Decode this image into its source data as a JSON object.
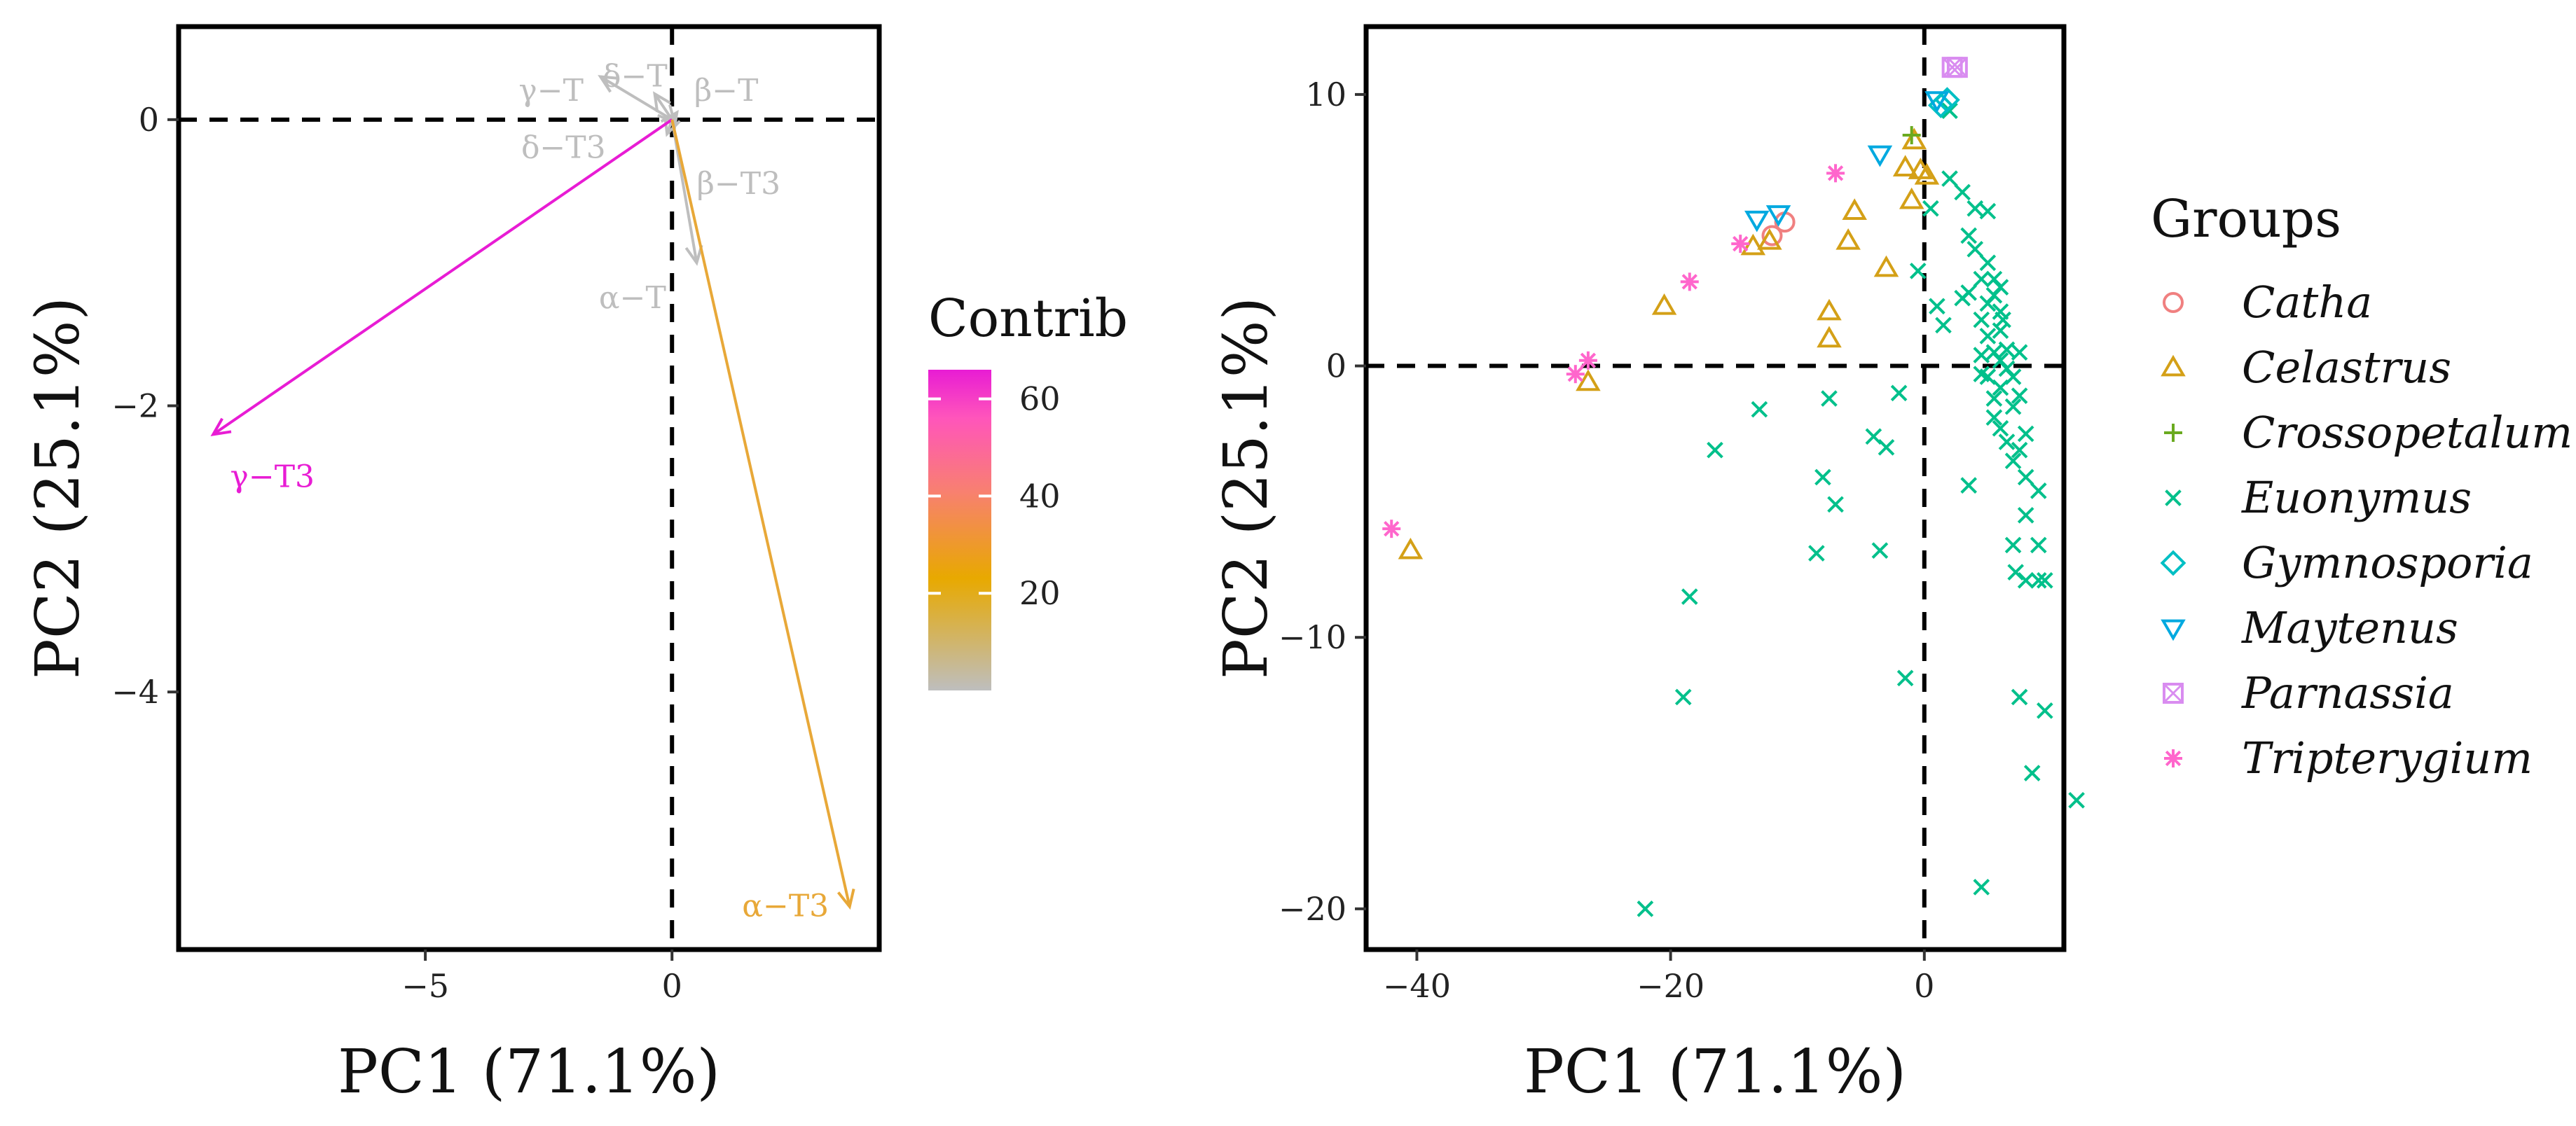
{
  "colors": {
    "catha": "#F08080",
    "celastrus": "#D4A017",
    "crossopetalum": "#6AAA1F",
    "euonymus": "#00C08B",
    "gymnosporia": "#00BFC4",
    "maytenus": "#00A9E0",
    "parnassia": "#D98CF0",
    "tripterygium": "#FF66CC",
    "gray": "#BEBEBE",
    "magenta": "#E81CD4",
    "gold": "#E8A838"
  },
  "chart_data": [
    {
      "type": "biplot-variables",
      "xlabel": "PC1 (71.1%)",
      "ylabel": "PC2 (25.1%)",
      "xlim": [
        -10,
        4.2
      ],
      "ylim": [
        -5.8,
        0.65
      ],
      "xticks": [
        {
          "v": -5,
          "label": "−5"
        },
        {
          "v": 0,
          "label": "0"
        }
      ],
      "yticks": [
        {
          "v": 0,
          "label": "0"
        },
        {
          "v": -2,
          "label": "−2"
        },
        {
          "v": -4,
          "label": "−4"
        }
      ],
      "vectors": [
        {
          "name": "γ−T",
          "x": -1.45,
          "y": 0.3,
          "contrib": 1,
          "lx": -2.45,
          "ly": 0.2
        },
        {
          "name": "δ−T",
          "x": -0.35,
          "y": 0.18,
          "contrib": 1,
          "lx": -0.75,
          "ly": 0.3
        },
        {
          "name": "β−T",
          "x": 0.1,
          "y": 0.05,
          "contrib": 1,
          "lx": 1.1,
          "ly": 0.2
        },
        {
          "name": "δ−T3",
          "x": -0.1,
          "y": -0.1,
          "contrib": 1,
          "lx": -2.2,
          "ly": -0.2
        },
        {
          "name": "β−T3",
          "x": 0.05,
          "y": -0.02,
          "contrib": 1,
          "lx": 1.35,
          "ly": -0.45
        },
        {
          "name": "α−T",
          "x": 0.5,
          "y": -1.0,
          "contrib": 2,
          "lx": -0.8,
          "ly": -1.25
        },
        {
          "name": "γ−T3",
          "x": -9.3,
          "y": -2.2,
          "contrib": 65,
          "lx": -8.1,
          "ly": -2.5
        },
        {
          "name": "α−T3",
          "x": 3.6,
          "y": -5.5,
          "contrib": 30,
          "lx": 2.3,
          "ly": -5.5
        }
      ],
      "colorbar": {
        "title": "Contrib",
        "range": [
          0,
          66
        ],
        "ticks": [
          20,
          40,
          60
        ]
      }
    },
    {
      "type": "scatter",
      "xlabel": "PC1 (71.1%)",
      "ylabel": "PC2 (25.1%)",
      "xlim": [
        -44,
        11
      ],
      "ylim": [
        -21.5,
        12.5
      ],
      "xticks": [
        {
          "v": -40,
          "label": "−40"
        },
        {
          "v": -20,
          "label": "−20"
        },
        {
          "v": 0,
          "label": "0"
        }
      ],
      "yticks": [
        {
          "v": 10,
          "label": "10"
        },
        {
          "v": 0,
          "label": "0"
        },
        {
          "v": -10,
          "label": "−10"
        },
        {
          "v": -20,
          "label": "−20"
        }
      ],
      "legend_title": "Groups",
      "series": [
        {
          "name": "Catha",
          "marker": "circle",
          "color_key": "catha",
          "points": [
            [
              -11.0,
              5.3
            ],
            [
              -12.0,
              4.8
            ]
          ]
        },
        {
          "name": "Celastrus",
          "marker": "triangle-up",
          "color_key": "celastrus",
          "points": [
            [
              -40.5,
              -6.8
            ],
            [
              -26.5,
              -0.6
            ],
            [
              -20.5,
              2.2
            ],
            [
              -13.5,
              4.4
            ],
            [
              -12.2,
              4.6
            ],
            [
              -7.5,
              2.0
            ],
            [
              -7.5,
              1.0
            ],
            [
              -6.0,
              4.6
            ],
            [
              -5.5,
              5.7
            ],
            [
              -3.0,
              3.6
            ],
            [
              -1.5,
              7.3
            ],
            [
              -1.0,
              6.1
            ],
            [
              -0.8,
              8.3
            ],
            [
              -0.3,
              7.2
            ],
            [
              0.2,
              7.0
            ]
          ]
        },
        {
          "name": "Crossopetalum",
          "marker": "plus",
          "color_key": "crossopetalum",
          "points": [
            [
              -1.0,
              8.5
            ]
          ]
        },
        {
          "name": "Euonymus",
          "marker": "x",
          "color_key": "euonymus",
          "points": [
            [
              -22,
              -20
            ],
            [
              -19,
              -12.2
            ],
            [
              -18.5,
              -8.5
            ],
            [
              -16.5,
              -3.1
            ],
            [
              -13,
              -1.6
            ],
            [
              -8,
              -4.1
            ],
            [
              -7.5,
              -1.2
            ],
            [
              -7,
              -5.1
            ],
            [
              -8.5,
              -6.9
            ],
            [
              -4,
              -2.6
            ],
            [
              -3.5,
              -6.8
            ],
            [
              -3,
              -3.0
            ],
            [
              -2,
              -1.0
            ],
            [
              -1.5,
              -11.5
            ],
            [
              -0.5,
              3.5
            ],
            [
              0.5,
              5.8
            ],
            [
              1,
              2.2
            ],
            [
              1.5,
              1.5
            ],
            [
              2,
              9.4
            ],
            [
              2,
              6.9
            ],
            [
              3,
              6.4
            ],
            [
              3,
              2.5
            ],
            [
              3.5,
              4.8
            ],
            [
              3.5,
              -4.4
            ],
            [
              3.5,
              2.7
            ],
            [
              4,
              5.8
            ],
            [
              4,
              4.3
            ],
            [
              4.5,
              3.2
            ],
            [
              4.5,
              1.7
            ],
            [
              4.5,
              0.4
            ],
            [
              4.5,
              -0.3
            ],
            [
              4.5,
              -19.2
            ],
            [
              5,
              5.7
            ],
            [
              5,
              3.8
            ],
            [
              5,
              2.3
            ],
            [
              5,
              1.1
            ],
            [
              5,
              -0.4
            ],
            [
              5.5,
              3.2
            ],
            [
              5.5,
              2.6
            ],
            [
              5.5,
              0.5
            ],
            [
              5.5,
              -1.2
            ],
            [
              5.5,
              -1.9
            ],
            [
              6,
              2.9
            ],
            [
              6,
              2.0
            ],
            [
              6,
              1.3
            ],
            [
              6,
              0.2
            ],
            [
              6,
              -0.8
            ],
            [
              6,
              -2.3
            ],
            [
              6.2,
              1.7
            ],
            [
              6.5,
              0.6
            ],
            [
              6.5,
              -0.1
            ],
            [
              6.5,
              -2.8
            ],
            [
              7,
              -0.4
            ],
            [
              7,
              -1.5
            ],
            [
              7,
              -3.5
            ],
            [
              7,
              -6.6
            ],
            [
              7.2,
              -7.6
            ],
            [
              7.5,
              0.5
            ],
            [
              7.5,
              -1.1
            ],
            [
              7.5,
              -3.1
            ],
            [
              7.5,
              -12.2
            ],
            [
              8,
              -2.5
            ],
            [
              8,
              -4.1
            ],
            [
              8,
              -5.5
            ],
            [
              8,
              -7.9
            ],
            [
              8.5,
              -15
            ],
            [
              9,
              -4.6
            ],
            [
              9,
              -6.6
            ],
            [
              9,
              -7.9
            ],
            [
              9.5,
              -7.9
            ],
            [
              9.5,
              -12.7
            ],
            [
              12,
              -16
            ]
          ]
        },
        {
          "name": "Gymnosporia",
          "marker": "diamond",
          "color_key": "gymnosporia",
          "points": [
            [
              1.3,
              9.6
            ],
            [
              1.8,
              9.8
            ]
          ]
        },
        {
          "name": "Maytenus",
          "marker": "triangle-down",
          "color_key": "maytenus",
          "points": [
            [
              -13.2,
              5.4
            ],
            [
              -11.5,
              5.6
            ],
            [
              -3.5,
              7.8
            ],
            [
              1.0,
              9.8
            ]
          ]
        },
        {
          "name": "Parnassia",
          "marker": "square",
          "color_key": "parnassia",
          "points": [
            [
              2.2,
              11.0
            ],
            [
              2.6,
              11.0
            ]
          ]
        },
        {
          "name": "Tripterygium",
          "marker": "asterisk",
          "color_key": "tripterygium",
          "points": [
            [
              -42,
              -6.0
            ],
            [
              -27.5,
              -0.3
            ],
            [
              -26.5,
              0.2
            ],
            [
              -18.5,
              3.1
            ],
            [
              -14.5,
              4.5
            ],
            [
              -7,
              7.1
            ]
          ]
        }
      ]
    }
  ]
}
